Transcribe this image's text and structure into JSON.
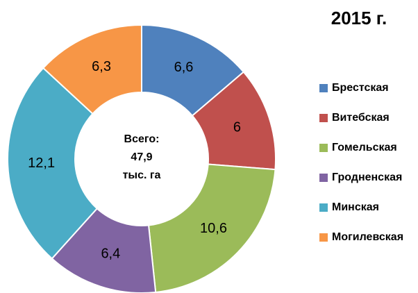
{
  "chart_data": {
    "type": "donut",
    "title": "2015 г.",
    "categories": [
      "Брестская",
      "Витебская",
      "Гомельская",
      "Гродненская",
      "Минская",
      "Могилевская"
    ],
    "values": [
      6.6,
      6,
      10.6,
      6.4,
      12.1,
      6.3
    ],
    "value_labels": [
      "6,6",
      "6",
      "10,6",
      "6,4",
      "12,1",
      "6,3"
    ],
    "colors": [
      "#4f81bd",
      "#c0504d",
      "#9bbb59",
      "#8064a2",
      "#4bacc6",
      "#f79646"
    ],
    "center_text": [
      "Всего:",
      "47,9",
      "тыс. га"
    ],
    "legend": "right"
  }
}
